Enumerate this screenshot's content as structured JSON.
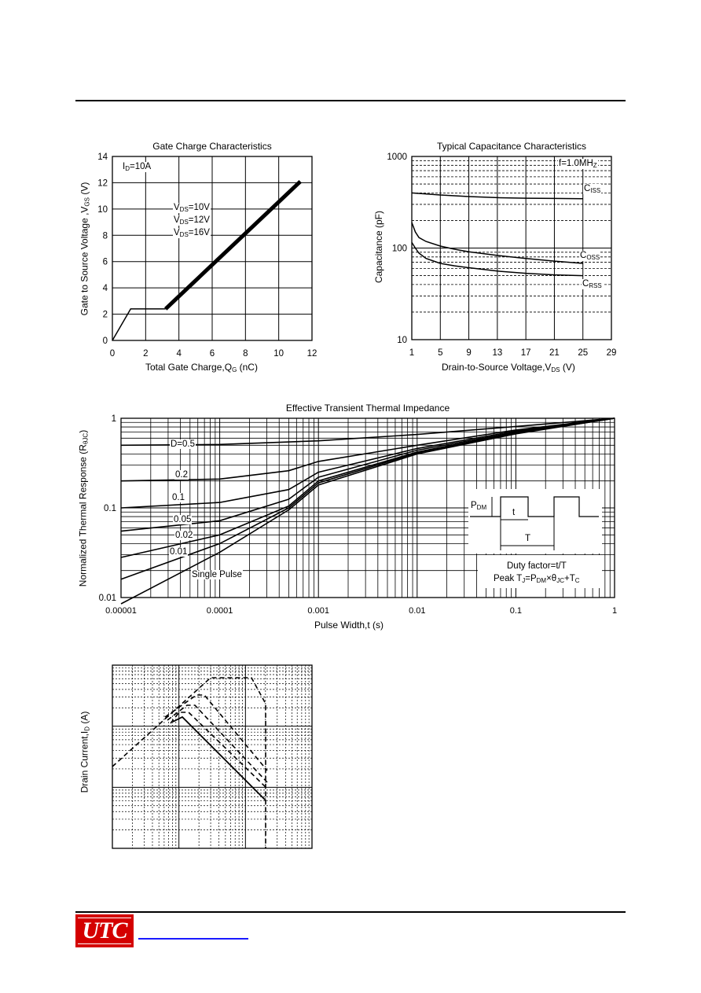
{
  "chart_data": [
    {
      "type": "line",
      "title": "Gate Charge Characteristics",
      "xlabel": "Total Gate Charge,Q",
      "xlabel_sub": "G",
      "xlabel_unit": " (nC)",
      "ylabel": "Gate to Source Voltage ,V",
      "ylabel_sub": "GS",
      "ylabel_unit": " (V)",
      "xlim": [
        0,
        12
      ],
      "ylim": [
        0,
        14
      ],
      "x_ticks": [
        "0",
        "2",
        "4",
        "6",
        "8",
        "10",
        "12"
      ],
      "y_ticks": [
        "0",
        "2",
        "4",
        "6",
        "8",
        "10",
        "12",
        "14"
      ],
      "annotation_id": "I",
      "annotation_id_sub": "D",
      "annotation_id_val": "=10A",
      "legend_vds": [
        {
          "prefix": "V",
          "sub": "DS",
          "val": "=10V"
        },
        {
          "prefix": "V",
          "sub": "DS",
          "val": "=12V"
        },
        {
          "prefix": "V",
          "sub": "DS",
          "val": "=16V"
        }
      ],
      "series": [
        {
          "x": [
            0,
            1.1,
            3.2,
            11.3
          ],
          "y": [
            0,
            2.4,
            2.4,
            12.1
          ]
        }
      ],
      "grid": true
    },
    {
      "type": "line",
      "title": "Typical Capacitance  Characteristics",
      "xlabel": "Drain-to-Source Voltage,V",
      "xlabel_sub": "DS",
      "xlabel_unit": " (V)",
      "ylabel": "Capacitance (pF)",
      "xlim": [
        1,
        29
      ],
      "ylim": [
        10,
        1000
      ],
      "yscale": "log",
      "x_ticks": [
        "1",
        "5",
        "9",
        "13",
        "17",
        "21",
        "25",
        "29"
      ],
      "y_ticks": [
        "10",
        "100",
        "1000"
      ],
      "annotation_freq": "f=1.0MH",
      "annotation_freq_sub": "Z",
      "series": [
        {
          "name": "C",
          "name_sub": "ISS",
          "x": [
            1,
            5,
            9,
            13,
            17,
            21,
            25
          ],
          "y": [
            400,
            380,
            365,
            355,
            350,
            348,
            345
          ]
        },
        {
          "name": "C",
          "name_sub": "OSS",
          "x": [
            1,
            1.5,
            2,
            3,
            5,
            7,
            9,
            13,
            17,
            21,
            25
          ],
          "y": [
            190,
            150,
            130,
            118,
            105,
            97,
            91,
            83,
            77,
            72,
            68
          ]
        },
        {
          "name": "C",
          "name_sub": "RSS",
          "x": [
            1,
            1.5,
            2,
            3,
            5,
            7,
            9,
            13,
            17,
            21,
            25
          ],
          "y": [
            115,
            100,
            88,
            77,
            68,
            64,
            61,
            56,
            53,
            51,
            50
          ]
        }
      ],
      "grid": true
    },
    {
      "type": "line",
      "title": "Effective Transient Thermal Impedance",
      "xlabel": "Pulse Width,t (s)",
      "ylabel": "Normalized Thermal Response (R",
      "ylabel_sub": "θJC",
      "ylabel_unit": ")",
      "xscale": "log",
      "yscale": "log",
      "xlim": [
        1e-05,
        1
      ],
      "ylim": [
        0.01,
        1
      ],
      "x_ticks": [
        "0.00001",
        "0.0001",
        "0.001",
        "0.01",
        "0.1",
        "1"
      ],
      "y_ticks": [
        "0.01",
        "0.1",
        "1"
      ],
      "series": [
        {
          "name": "D=0.5",
          "x": [
            1e-05,
            0.0001,
            0.001,
            0.01,
            0.1,
            1
          ],
          "y": [
            0.5,
            0.51,
            0.56,
            0.66,
            0.81,
            1.0
          ]
        },
        {
          "name": "0.2",
          "x": [
            1e-05,
            0.0001,
            0.0005,
            0.001,
            0.01,
            0.1,
            1
          ],
          "y": [
            0.2,
            0.21,
            0.26,
            0.33,
            0.5,
            0.74,
            1.0
          ]
        },
        {
          "name": "0.1",
          "x": [
            1e-05,
            0.0001,
            0.0005,
            0.001,
            0.01,
            0.1,
            1
          ],
          "y": [
            0.1,
            0.115,
            0.16,
            0.25,
            0.46,
            0.72,
            1.0
          ]
        },
        {
          "name": "0.05",
          "x": [
            1e-05,
            0.0001,
            0.0005,
            0.001,
            0.01,
            0.1,
            1
          ],
          "y": [
            0.055,
            0.072,
            0.125,
            0.22,
            0.44,
            0.7,
            1.0
          ]
        },
        {
          "name": "0.02",
          "x": [
            1e-05,
            0.0001,
            0.0005,
            0.001,
            0.01,
            0.1,
            1
          ],
          "y": [
            0.028,
            0.05,
            0.105,
            0.2,
            0.42,
            0.69,
            1.0
          ]
        },
        {
          "name": "0.01",
          "x": [
            1e-05,
            0.0001,
            0.0005,
            0.001,
            0.01,
            0.1,
            1
          ],
          "y": [
            0.016,
            0.04,
            0.1,
            0.19,
            0.41,
            0.68,
            1.0
          ]
        },
        {
          "name": "Single Pulse",
          "x": [
            1e-05,
            0.0001,
            0.0005,
            0.001,
            0.01,
            0.1,
            1
          ],
          "y": [
            0.0085,
            0.032,
            0.095,
            0.18,
            0.4,
            0.67,
            1.0
          ]
        }
      ],
      "inset": {
        "pdm": "P",
        "pdm_sub": "DM",
        "t": "t",
        "T": "T",
        "duty": "Duty factor=t/T",
        "peak_prefix": "Peak T",
        "peak_sub1": "J",
        "peak_mid": "=P",
        "peak_sub2": "DM",
        "peak_mid2": "×θ",
        "peak_sub3": "JC",
        "peak_mid3": "+T",
        "peak_sub4": "C"
      },
      "grid": true
    },
    {
      "type": "line",
      "ylabel": "Drain Current,I",
      "ylabel_sub": "D",
      "ylabel_unit": " (A)",
      "grid": true
    }
  ],
  "footer": {
    "logo_text": "UTC"
  }
}
